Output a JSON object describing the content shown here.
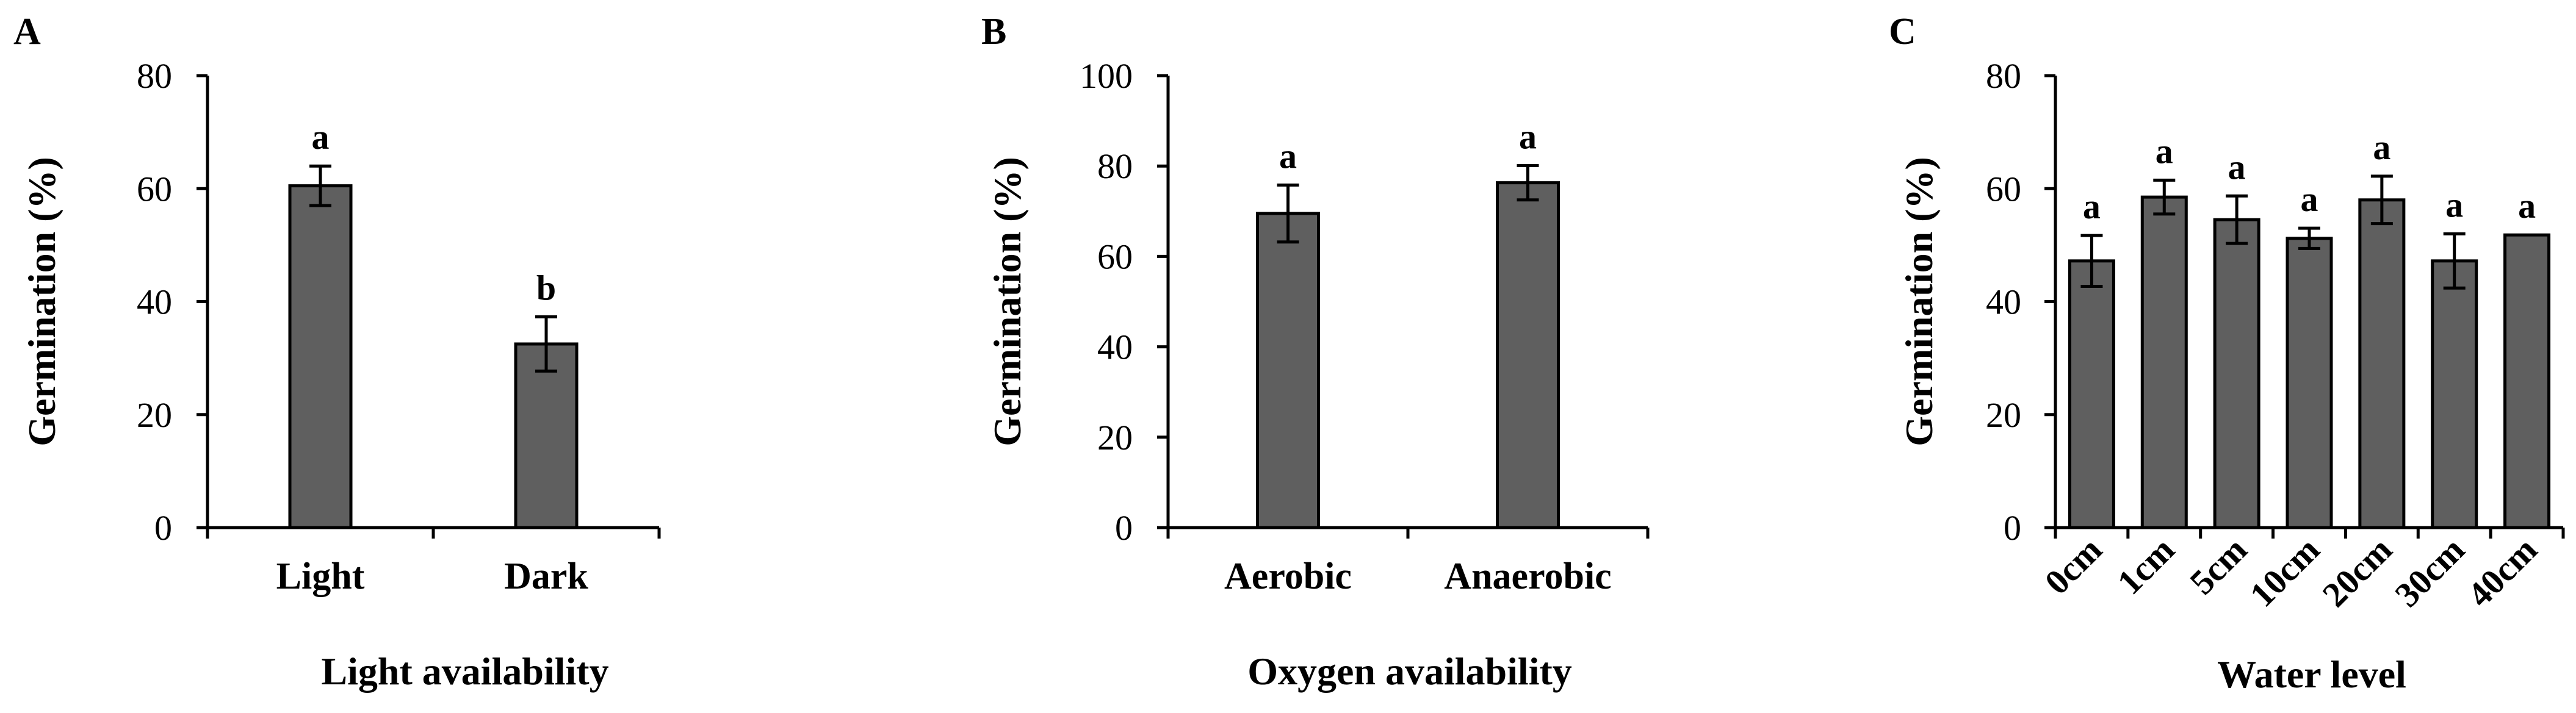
{
  "chart_data": [
    {
      "type": "bar",
      "panel": "A",
      "categories": [
        "Light",
        "Dark"
      ],
      "values": [
        60.5,
        32.5
      ],
      "errors": [
        3.5,
        4.8
      ],
      "significance": [
        "a",
        "b"
      ],
      "xlabel": "Light availability",
      "ylabel": "Germination (%)",
      "ylim": [
        0,
        80
      ],
      "yticks": [
        0,
        20,
        40,
        60,
        80
      ],
      "bar_color": "#5f5f5f",
      "grid": false
    },
    {
      "type": "bar",
      "panel": "B",
      "categories": [
        "Aerobic",
        "Anaerobic"
      ],
      "values": [
        69.5,
        76.3
      ],
      "errors": [
        6.3,
        3.8
      ],
      "significance": [
        "a",
        "a"
      ],
      "xlabel": "Oxygen availability",
      "ylabel": "Germination (%)",
      "ylim": [
        0,
        100
      ],
      "yticks": [
        0,
        20,
        40,
        60,
        80,
        100
      ],
      "bar_color": "#5f5f5f",
      "grid": false
    },
    {
      "type": "bar",
      "panel": "C",
      "categories": [
        "0cm",
        "1cm",
        "5cm",
        "10cm",
        "20cm",
        "30cm",
        "40cm"
      ],
      "values": [
        47.2,
        58.5,
        54.5,
        51.2,
        58.0,
        47.2,
        51.8
      ],
      "errors": [
        4.5,
        3.0,
        4.2,
        1.8,
        4.2,
        4.8,
        0
      ],
      "significance": [
        "a",
        "a",
        "a",
        "a",
        "a",
        "a",
        "a"
      ],
      "xlabel": "Water level",
      "ylabel": "Germination (%)",
      "ylim": [
        0,
        80
      ],
      "yticks": [
        0,
        20,
        40,
        60,
        80
      ],
      "bar_color": "#5f5f5f",
      "grid": false
    }
  ]
}
